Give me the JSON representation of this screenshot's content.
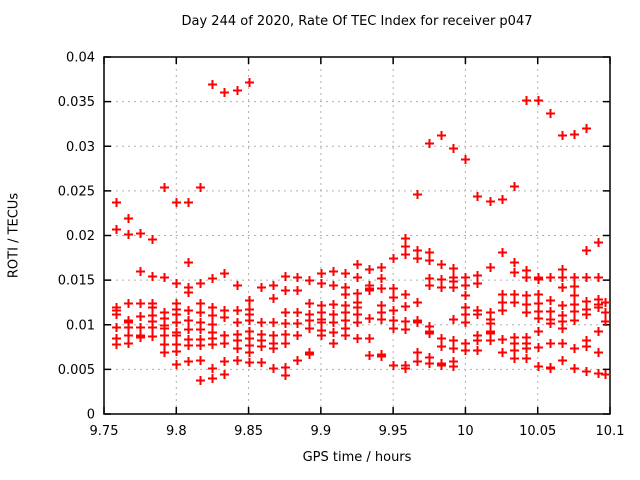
{
  "chart_data": {
    "type": "scatter",
    "title": "Day 244 of 2020, Rate Of TEC Index for receiver p047",
    "xlabel": "GPS time / hours",
    "ylabel": "ROTI / TECUs",
    "xlim": [
      9.75,
      10.1
    ],
    "ylim": [
      0,
      0.04
    ],
    "xtick_values": [
      9.75,
      9.8,
      9.85,
      9.9,
      9.95,
      10,
      10.05,
      10.1
    ],
    "xtick_labels": [
      "9.75",
      "9.8",
      "9.85",
      "9.9",
      "9.95",
      "10",
      "10.05",
      "10.1"
    ],
    "ytick_values": [
      0,
      0.005,
      0.01,
      0.015,
      0.02,
      0.025,
      0.03,
      0.035,
      0.04
    ],
    "ytick_labels": [
      "0",
      "0.005",
      "0.01",
      "0.015",
      "0.02",
      "0.025",
      "0.03",
      "0.035",
      "0.04"
    ],
    "grid": true,
    "legend": "none",
    "marker": "plus",
    "marker_color": "#ff0000",
    "grid_color": "#b0b0b0",
    "axis_color": "#000000",
    "points": [
      [
        9.7583,
        0.0237
      ],
      [
        9.7583,
        0.0207
      ],
      [
        9.7583,
        0.012
      ],
      [
        9.7583,
        0.0117
      ],
      [
        9.7583,
        0.0112
      ],
      [
        9.7583,
        0.0098
      ],
      [
        9.7583,
        0.0085
      ],
      [
        9.7583,
        0.0078
      ],
      [
        9.7667,
        0.022
      ],
      [
        9.7667,
        0.0202
      ],
      [
        9.7667,
        0.0124
      ],
      [
        9.7667,
        0.0105
      ],
      [
        9.7667,
        0.0103
      ],
      [
        9.7667,
        0.0097
      ],
      [
        9.7667,
        0.0089
      ],
      [
        9.7667,
        0.0079
      ],
      [
        9.775,
        0.0203
      ],
      [
        9.775,
        0.016
      ],
      [
        9.775,
        0.0124
      ],
      [
        9.775,
        0.011
      ],
      [
        9.775,
        0.0098
      ],
      [
        9.775,
        0.0088
      ],
      [
        9.775,
        0.0086
      ],
      [
        9.7833,
        0.0196
      ],
      [
        9.7833,
        0.0155
      ],
      [
        9.7833,
        0.0124
      ],
      [
        9.7833,
        0.012
      ],
      [
        9.7833,
        0.0111
      ],
      [
        9.7833,
        0.0104
      ],
      [
        9.7833,
        0.0097
      ],
      [
        9.7833,
        0.0087
      ],
      [
        9.7917,
        0.0254
      ],
      [
        9.7917,
        0.0153
      ],
      [
        9.7917,
        0.0114
      ],
      [
        9.7917,
        0.0108
      ],
      [
        9.7917,
        0.01
      ],
      [
        9.7917,
        0.0096
      ],
      [
        9.7917,
        0.0088
      ],
      [
        9.7917,
        0.0078
      ],
      [
        9.7917,
        0.0069
      ],
      [
        9.8,
        0.0237
      ],
      [
        9.8,
        0.0147
      ],
      [
        9.8,
        0.0124
      ],
      [
        9.8,
        0.0118
      ],
      [
        9.8,
        0.0112
      ],
      [
        9.8,
        0.0103
      ],
      [
        9.8,
        0.0092
      ],
      [
        9.8,
        0.0088
      ],
      [
        9.8,
        0.0078
      ],
      [
        9.8,
        0.0071
      ],
      [
        9.8,
        0.0056
      ],
      [
        9.8083,
        0.0237
      ],
      [
        9.8083,
        0.017
      ],
      [
        9.8083,
        0.0142
      ],
      [
        9.8083,
        0.0137
      ],
      [
        9.8083,
        0.0116
      ],
      [
        9.8083,
        0.0105
      ],
      [
        9.8083,
        0.0095
      ],
      [
        9.8083,
        0.0084
      ],
      [
        9.8083,
        0.0077
      ],
      [
        9.8083,
        0.0059
      ],
      [
        9.8167,
        0.0254
      ],
      [
        9.8167,
        0.0147
      ],
      [
        9.8167,
        0.0124
      ],
      [
        9.8167,
        0.0114
      ],
      [
        9.8167,
        0.0103
      ],
      [
        9.8167,
        0.0095
      ],
      [
        9.8167,
        0.0084
      ],
      [
        9.8167,
        0.0077
      ],
      [
        9.8167,
        0.006
      ],
      [
        9.8167,
        0.0038
      ],
      [
        9.825,
        0.037
      ],
      [
        9.825,
        0.0152
      ],
      [
        9.825,
        0.012
      ],
      [
        9.825,
        0.0111
      ],
      [
        9.825,
        0.0101
      ],
      [
        9.825,
        0.0092
      ],
      [
        9.825,
        0.0085
      ],
      [
        9.825,
        0.0078
      ],
      [
        9.825,
        0.0051
      ],
      [
        9.825,
        0.004
      ],
      [
        9.8333,
        0.0361
      ],
      [
        9.8333,
        0.0158
      ],
      [
        9.8333,
        0.0117
      ],
      [
        9.8333,
        0.0109
      ],
      [
        9.8333,
        0.0088
      ],
      [
        9.8333,
        0.0079
      ],
      [
        9.8333,
        0.0059
      ],
      [
        9.8333,
        0.0045
      ],
      [
        9.8417,
        0.0363
      ],
      [
        9.8417,
        0.0145
      ],
      [
        9.8417,
        0.0116
      ],
      [
        9.8417,
        0.0103
      ],
      [
        9.8417,
        0.009
      ],
      [
        9.8417,
        0.0083
      ],
      [
        9.8417,
        0.0074
      ],
      [
        9.8417,
        0.006
      ],
      [
        9.85,
        0.0372
      ],
      [
        9.85,
        0.0128
      ],
      [
        9.85,
        0.0118
      ],
      [
        9.85,
        0.0112
      ],
      [
        9.85,
        0.0105
      ],
      [
        9.85,
        0.0093
      ],
      [
        9.85,
        0.0085
      ],
      [
        9.85,
        0.0077
      ],
      [
        9.85,
        0.007
      ],
      [
        9.85,
        0.0058
      ],
      [
        9.8583,
        0.0142
      ],
      [
        9.8583,
        0.0103
      ],
      [
        9.8583,
        0.009
      ],
      [
        9.8583,
        0.0083
      ],
      [
        9.8583,
        0.0076
      ],
      [
        9.8583,
        0.0058
      ],
      [
        9.8667,
        0.0144
      ],
      [
        9.8667,
        0.013
      ],
      [
        9.8667,
        0.0103
      ],
      [
        9.8667,
        0.0088
      ],
      [
        9.8667,
        0.008
      ],
      [
        9.8667,
        0.0074
      ],
      [
        9.8667,
        0.0051
      ],
      [
        9.875,
        0.0155
      ],
      [
        9.875,
        0.0139
      ],
      [
        9.875,
        0.0114
      ],
      [
        9.875,
        0.0102
      ],
      [
        9.875,
        0.009
      ],
      [
        9.875,
        0.008
      ],
      [
        9.875,
        0.0053
      ],
      [
        9.875,
        0.0044
      ],
      [
        9.8833,
        0.0154
      ],
      [
        9.8833,
        0.0139
      ],
      [
        9.8833,
        0.0114
      ],
      [
        9.8833,
        0.0102
      ],
      [
        9.8833,
        0.0088
      ],
      [
        9.8833,
        0.0061
      ],
      [
        9.8917,
        0.015
      ],
      [
        9.8917,
        0.0124
      ],
      [
        9.8917,
        0.0112
      ],
      [
        9.8917,
        0.0105
      ],
      [
        9.8917,
        0.0096
      ],
      [
        9.8917,
        0.0069
      ],
      [
        9.8917,
        0.0067
      ],
      [
        9.9,
        0.0158
      ],
      [
        9.9,
        0.0147
      ],
      [
        9.9,
        0.0122
      ],
      [
        9.9,
        0.0114
      ],
      [
        9.9,
        0.0107
      ],
      [
        9.9,
        0.0103
      ],
      [
        9.9,
        0.0094
      ],
      [
        9.9,
        0.0088
      ],
      [
        9.9083,
        0.016
      ],
      [
        9.9083,
        0.0144
      ],
      [
        9.9083,
        0.0123
      ],
      [
        9.9083,
        0.0112
      ],
      [
        9.9083,
        0.0103
      ],
      [
        9.9083,
        0.0092
      ],
      [
        9.9083,
        0.008
      ],
      [
        9.9167,
        0.0158
      ],
      [
        9.9167,
        0.0142
      ],
      [
        9.9167,
        0.0135
      ],
      [
        9.9167,
        0.0122
      ],
      [
        9.9167,
        0.0114
      ],
      [
        9.9167,
        0.0105
      ],
      [
        9.9167,
        0.0096
      ],
      [
        9.9167,
        0.0088
      ],
      [
        9.925,
        0.0168
      ],
      [
        9.925,
        0.0154
      ],
      [
        9.925,
        0.0136
      ],
      [
        9.925,
        0.0125
      ],
      [
        9.925,
        0.012
      ],
      [
        9.925,
        0.0112
      ],
      [
        9.925,
        0.0103
      ],
      [
        9.925,
        0.0085
      ],
      [
        9.9333,
        0.0163
      ],
      [
        9.9333,
        0.0144
      ],
      [
        9.9333,
        0.0141
      ],
      [
        9.9333,
        0.0139
      ],
      [
        9.9333,
        0.0108
      ],
      [
        9.9333,
        0.0085
      ],
      [
        9.9333,
        0.0066
      ],
      [
        9.9417,
        0.0165
      ],
      [
        9.9417,
        0.0152
      ],
      [
        9.9417,
        0.0141
      ],
      [
        9.9417,
        0.0122
      ],
      [
        9.9417,
        0.0114
      ],
      [
        9.9417,
        0.0107
      ],
      [
        9.9417,
        0.0067
      ],
      [
        9.9417,
        0.0065
      ],
      [
        9.95,
        0.0175
      ],
      [
        9.95,
        0.0141
      ],
      [
        9.95,
        0.0131
      ],
      [
        9.95,
        0.0116
      ],
      [
        9.95,
        0.0105
      ],
      [
        9.95,
        0.0096
      ],
      [
        9.95,
        0.0055
      ],
      [
        9.9583,
        0.0197
      ],
      [
        9.9583,
        0.0188
      ],
      [
        9.9583,
        0.0179
      ],
      [
        9.9583,
        0.0134
      ],
      [
        9.9583,
        0.0121
      ],
      [
        9.9583,
        0.0104
      ],
      [
        9.9583,
        0.0095
      ],
      [
        9.9583,
        0.0055
      ],
      [
        9.9583,
        0.0051
      ],
      [
        9.9667,
        0.0247
      ],
      [
        9.9667,
        0.0184
      ],
      [
        9.9667,
        0.0175
      ],
      [
        9.9667,
        0.0125
      ],
      [
        9.9667,
        0.0105
      ],
      [
        9.9667,
        0.0103
      ],
      [
        9.9667,
        0.007
      ],
      [
        9.9667,
        0.0059
      ],
      [
        9.975,
        0.0304
      ],
      [
        9.975,
        0.0181
      ],
      [
        9.975,
        0.0172
      ],
      [
        9.975,
        0.0152
      ],
      [
        9.975,
        0.0144
      ],
      [
        9.975,
        0.0099
      ],
      [
        9.975,
        0.0093
      ],
      [
        9.975,
        0.0091
      ],
      [
        9.975,
        0.0064
      ],
      [
        9.975,
        0.0057
      ],
      [
        9.9833,
        0.0313
      ],
      [
        9.9833,
        0.0168
      ],
      [
        9.9833,
        0.0151
      ],
      [
        9.9833,
        0.0142
      ],
      [
        9.9833,
        0.0085
      ],
      [
        9.9833,
        0.0076
      ],
      [
        9.9833,
        0.0057
      ],
      [
        9.9833,
        0.0055
      ],
      [
        9.9917,
        0.0298
      ],
      [
        9.9917,
        0.0164
      ],
      [
        9.9917,
        0.0153
      ],
      [
        9.9917,
        0.0149
      ],
      [
        9.9917,
        0.0142
      ],
      [
        9.9917,
        0.0106
      ],
      [
        9.9917,
        0.0083
      ],
      [
        9.9917,
        0.0074
      ],
      [
        9.9917,
        0.0059
      ],
      [
        9.9917,
        0.0054
      ],
      [
        10.0,
        0.0286
      ],
      [
        10.0,
        0.0154
      ],
      [
        10.0,
        0.0145
      ],
      [
        10.0,
        0.0133
      ],
      [
        10.0,
        0.012
      ],
      [
        10.0,
        0.0112
      ],
      [
        10.0,
        0.0103
      ],
      [
        10.0,
        0.008
      ],
      [
        10.0,
        0.0072
      ],
      [
        10.0083,
        0.0244
      ],
      [
        10.0083,
        0.0156
      ],
      [
        10.0083,
        0.0147
      ],
      [
        10.0083,
        0.0117
      ],
      [
        10.0083,
        0.0112
      ],
      [
        10.0083,
        0.0088
      ],
      [
        10.0083,
        0.0083
      ],
      [
        10.0083,
        0.0072
      ],
      [
        10.0167,
        0.0239
      ],
      [
        10.0167,
        0.0165
      ],
      [
        10.0167,
        0.0114
      ],
      [
        10.0167,
        0.0107
      ],
      [
        10.0167,
        0.0102
      ],
      [
        10.0167,
        0.0093
      ],
      [
        10.0167,
        0.0091
      ],
      [
        10.0167,
        0.0083
      ],
      [
        10.025,
        0.0241
      ],
      [
        10.025,
        0.0181
      ],
      [
        10.025,
        0.0134
      ],
      [
        10.025,
        0.0125
      ],
      [
        10.025,
        0.0116
      ],
      [
        10.025,
        0.0084
      ],
      [
        10.025,
        0.007
      ],
      [
        10.0333,
        0.0255
      ],
      [
        10.0333,
        0.017
      ],
      [
        10.0333,
        0.0159
      ],
      [
        10.0333,
        0.0135
      ],
      [
        10.0333,
        0.0125
      ],
      [
        10.0333,
        0.0086
      ],
      [
        10.0333,
        0.008
      ],
      [
        10.0333,
        0.0072
      ],
      [
        10.0333,
        0.0063
      ],
      [
        10.0417,
        0.0352
      ],
      [
        10.0417,
        0.0161
      ],
      [
        10.0417,
        0.0153
      ],
      [
        10.0417,
        0.0133
      ],
      [
        10.0417,
        0.0123
      ],
      [
        10.0417,
        0.0114
      ],
      [
        10.0417,
        0.0086
      ],
      [
        10.0417,
        0.008
      ],
      [
        10.0417,
        0.0074
      ],
      [
        10.0417,
        0.0063
      ],
      [
        10.05,
        0.0352
      ],
      [
        10.05,
        0.0153
      ],
      [
        10.05,
        0.0151
      ],
      [
        10.05,
        0.0134
      ],
      [
        10.05,
        0.0124
      ],
      [
        10.05,
        0.0115
      ],
      [
        10.05,
        0.0108
      ],
      [
        10.05,
        0.0093
      ],
      [
        10.05,
        0.0075
      ],
      [
        10.05,
        0.0054
      ],
      [
        10.0583,
        0.0337
      ],
      [
        10.0583,
        0.0153
      ],
      [
        10.0583,
        0.0128
      ],
      [
        10.0583,
        0.0115
      ],
      [
        10.0583,
        0.0107
      ],
      [
        10.0583,
        0.0102
      ],
      [
        10.0583,
        0.008
      ],
      [
        10.0583,
        0.0053
      ],
      [
        10.0583,
        0.0051
      ],
      [
        10.0667,
        0.0313
      ],
      [
        10.0667,
        0.0162
      ],
      [
        10.0667,
        0.0153
      ],
      [
        10.0667,
        0.0142
      ],
      [
        10.0667,
        0.0122
      ],
      [
        10.0667,
        0.0111
      ],
      [
        10.0667,
        0.0104
      ],
      [
        10.0667,
        0.0096
      ],
      [
        10.0667,
        0.0079
      ],
      [
        10.0667,
        0.006
      ],
      [
        10.075,
        0.0314
      ],
      [
        10.075,
        0.0153
      ],
      [
        10.075,
        0.0143
      ],
      [
        10.075,
        0.0133
      ],
      [
        10.075,
        0.0123
      ],
      [
        10.075,
        0.0115
      ],
      [
        10.075,
        0.0105
      ],
      [
        10.075,
        0.0074
      ],
      [
        10.075,
        0.0051
      ],
      [
        10.0833,
        0.032
      ],
      [
        10.0833,
        0.0184
      ],
      [
        10.0833,
        0.0153
      ],
      [
        10.0833,
        0.0127
      ],
      [
        10.0833,
        0.0118
      ],
      [
        10.0833,
        0.0112
      ],
      [
        10.0833,
        0.0083
      ],
      [
        10.0833,
        0.0076
      ],
      [
        10.0833,
        0.0048
      ],
      [
        10.0917,
        0.0193
      ],
      [
        10.0917,
        0.0153
      ],
      [
        10.0917,
        0.0129
      ],
      [
        10.0917,
        0.0123
      ],
      [
        10.0917,
        0.012
      ],
      [
        10.0917,
        0.0093
      ],
      [
        10.0917,
        0.0069
      ],
      [
        10.0917,
        0.0046
      ],
      [
        10.0967,
        0.0126
      ],
      [
        10.0967,
        0.0114
      ],
      [
        10.0967,
        0.0104
      ],
      [
        10.0967,
        0.0045
      ]
    ]
  }
}
